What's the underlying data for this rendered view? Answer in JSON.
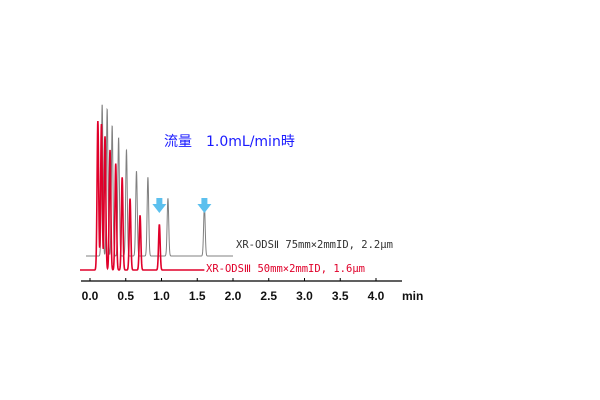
{
  "chart_data": {
    "type": "line",
    "title": "",
    "annotation": "流量　1.0mL/min時",
    "xlabel": "",
    "ylabel": "",
    "x_unit": "min",
    "xlim": [
      0.0,
      4.5
    ],
    "x_ticks": [
      "0.0",
      "0.5",
      "1.0",
      "1.5",
      "2.0",
      "2.5",
      "3.0",
      "3.5",
      "4.0"
    ],
    "grid": false,
    "series": [
      {
        "name": "XR-ODSⅡ 75mm×2mmID, 2.2μm",
        "color": "#808080",
        "x_end": 2.0,
        "peaks": [
          {
            "rt": 0.17,
            "height": 1.0
          },
          {
            "rt": 0.24,
            "height": 0.97
          },
          {
            "rt": 0.31,
            "height": 0.86
          },
          {
            "rt": 0.4,
            "height": 0.78
          },
          {
            "rt": 0.51,
            "height": 0.7
          },
          {
            "rt": 0.65,
            "height": 0.56
          },
          {
            "rt": 0.81,
            "height": 0.52
          },
          {
            "rt": 1.09,
            "height": 0.38
          },
          {
            "rt": 1.6,
            "height": 0.33
          }
        ],
        "marker_at": 1.6
      },
      {
        "name": "XR-ODSⅢ 50mm×2mmID, 1.6μm",
        "color": "#e0002a",
        "x_end": 1.6,
        "peaks": [
          {
            "rt": 0.11,
            "height": 0.98
          },
          {
            "rt": 0.16,
            "height": 0.96
          },
          {
            "rt": 0.21,
            "height": 0.88
          },
          {
            "rt": 0.28,
            "height": 0.79
          },
          {
            "rt": 0.36,
            "height": 0.7
          },
          {
            "rt": 0.45,
            "height": 0.61
          },
          {
            "rt": 0.56,
            "height": 0.47
          },
          {
            "rt": 0.7,
            "height": 0.36
          },
          {
            "rt": 0.97,
            "height": 0.3
          }
        ],
        "marker_at": 0.97
      }
    ],
    "marker_color": "#5cc0ee"
  }
}
